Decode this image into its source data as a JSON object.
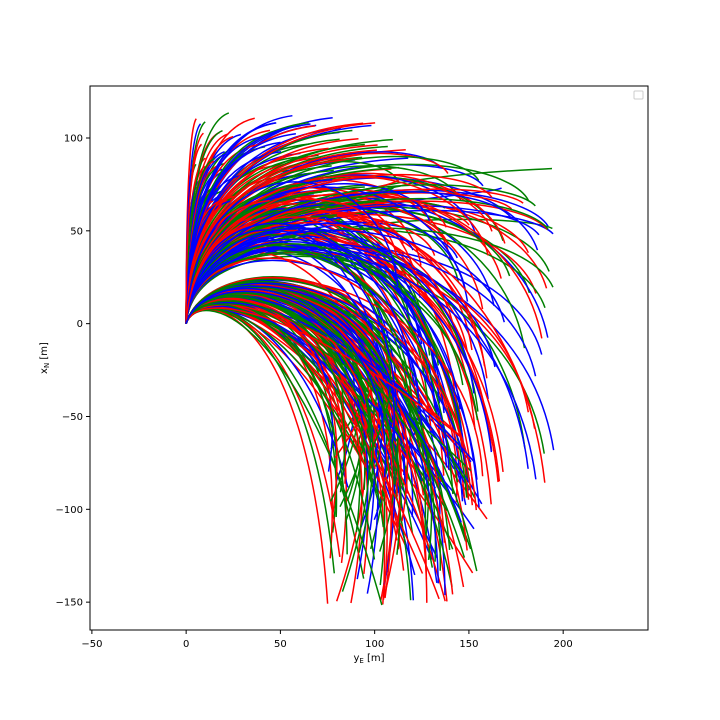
{
  "chart_data": {
    "type": "line",
    "title": "",
    "xlabel_main": "y",
    "xlabel_sub": "E",
    "xlabel_unit": " [m]",
    "ylabel_main": "x",
    "ylabel_sub": "N",
    "ylabel_unit": " [m]",
    "xlim": [
      -51,
      245
    ],
    "ylim": [
      -165,
      128
    ],
    "xticks": [
      -50,
      0,
      50,
      100,
      150,
      200
    ],
    "yticks": [
      -150,
      -100,
      -50,
      0,
      50,
      100
    ],
    "grid": false,
    "legend": "upper right (empty)",
    "series_colors": [
      "#ff0000",
      "#0000ff",
      "#008000"
    ],
    "trajectory_families": [
      {
        "group": "upward fan",
        "start": [
          0,
          0
        ],
        "end_y_range": [
          5,
          120
        ],
        "end_x_range": [
          60,
          115
        ]
      },
      {
        "group": "outer arc",
        "start": [
          0,
          0
        ],
        "end_y_range": [
          120,
          195
        ],
        "end_x_range": [
          -100,
          100
        ]
      },
      {
        "group": "downward loop",
        "start": [
          0,
          0
        ],
        "end_y_range": [
          75,
          160
        ],
        "end_x_range": [
          -152,
          -60
        ]
      }
    ]
  }
}
